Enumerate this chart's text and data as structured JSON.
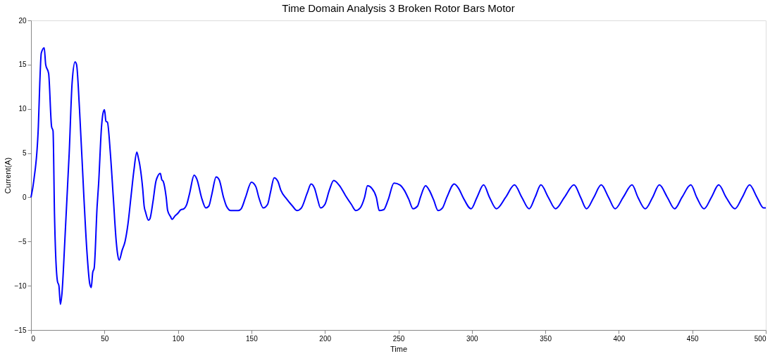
{
  "chart_data": {
    "type": "line",
    "title": "Time Domain Analysis 3 Broken Rotor Bars Motor",
    "xlabel": "Time",
    "ylabel": "Current(A)",
    "xlim": [
      0,
      500
    ],
    "xticks": [
      0,
      50,
      100,
      150,
      200,
      250,
      300,
      350,
      400,
      450,
      500
    ],
    "ylim": [
      -15,
      20
    ],
    "yticks": [
      -15,
      -10,
      -5,
      0,
      5,
      10,
      15,
      20
    ],
    "grid": false,
    "legend": false,
    "marker": "none",
    "line_style": "solid",
    "series": [
      {
        "color": "#0000ff",
        "x": [
          0,
          2,
          5,
          6,
          7,
          9,
          10,
          12,
          14,
          15,
          16,
          18,
          19,
          20,
          21,
          23,
          26,
          28,
          30,
          31,
          33,
          36,
          38,
          40,
          41,
          42,
          43,
          45,
          46,
          48,
          49,
          50,
          51,
          52,
          54,
          56,
          58,
          59,
          60,
          62,
          64,
          66,
          68,
          70,
          72,
          73,
          74,
          76,
          77,
          78,
          80,
          81,
          83,
          85,
          86,
          88,
          89,
          90,
          92,
          93,
          95,
          96,
          98,
          100,
          102,
          104,
          106,
          108,
          111,
          113,
          116,
          119,
          121,
          123,
          126,
          128,
          131,
          133,
          136,
          141,
          143,
          146,
          150,
          153,
          155,
          158,
          161,
          163,
          165.5,
          168,
          170,
          174,
          178,
          181,
          184,
          188,
          190.6,
          193,
          195,
          197,
          200,
          203,
          206,
          210,
          214,
          218,
          221,
          224,
          227,
          229,
          232,
          235,
          237,
          240,
          243,
          247,
          251,
          254,
          257,
          260,
          263,
          265,
          268.5,
          271,
          274,
          277,
          280,
          283,
          288,
          291,
          294,
          299.5,
          303.5,
          308,
          312,
          316.7,
          323,
          329,
          334,
          339,
          343,
          347,
          352,
          357,
          363,
          369.5,
          374,
          378,
          383,
          388,
          393,
          397.5,
          403,
          409,
          413,
          418,
          423,
          427.6,
          433,
          438,
          443,
          449,
          453,
          458,
          463,
          468,
          473,
          479,
          484,
          489,
          494,
          498.5,
          500
        ],
        "values": [
          0,
          2,
          8,
          13,
          16.3,
          16.9,
          15,
          14,
          8,
          7.5,
          -2,
          -9.5,
          -10,
          -12.1,
          -11,
          -5,
          5,
          13,
          15.3,
          15,
          10,
          0,
          -6,
          -9.8,
          -10.2,
          -8.5,
          -8,
          -1,
          1.5,
          8,
          9.5,
          9.9,
          8.6,
          8.5,
          5,
          0,
          -5,
          -6.5,
          -7.1,
          -6,
          -5,
          -3,
          0,
          3,
          5.1,
          4.5,
          3.7,
          1,
          -1,
          -1.7,
          -2.6,
          -2.4,
          -0.5,
          1.8,
          2.3,
          2.7,
          2,
          1.8,
          0,
          -1.5,
          -2.2,
          -2.5,
          -2.1,
          -1.8,
          -1.4,
          -1.3,
          -0.8,
          0.5,
          2.5,
          2,
          0,
          -1.2,
          -1,
          0.3,
          2.3,
          2,
          0,
          -1,
          -1.5,
          -1.5,
          -1.3,
          0,
          1.7,
          1.2,
          0,
          -1.2,
          -0.8,
          0.6,
          2.2,
          1.8,
          0.8,
          -0.2,
          -1,
          -1.5,
          -1.2,
          0.5,
          1.5,
          1,
          -0.2,
          -1.2,
          -0.8,
          0.8,
          1.9,
          1.3,
          0.2,
          -0.8,
          -1.5,
          -1.2,
          0,
          1.3,
          1,
          0,
          -1.5,
          -1.4,
          -0.3,
          1.6,
          1.4,
          0.8,
          -0.2,
          -1.3,
          -1,
          0,
          1.3,
          0.8,
          -0.3,
          -1.5,
          -1.2,
          0,
          1.5,
          1,
          0,
          -1.3,
          0,
          1.4,
          0,
          -1.3,
          0,
          1.4,
          0,
          -1.3,
          0,
          1.4,
          0,
          -1.3,
          0,
          1.4,
          0,
          -1.3,
          0,
          1.4,
          0,
          -1.3,
          0,
          1.4,
          0,
          -1.3,
          0,
          1.4,
          0,
          -1.3,
          0,
          1.4,
          0,
          -1.3,
          0,
          1.4,
          0,
          -1.3,
          0,
          1.4,
          0,
          -1.2,
          -1.2
        ]
      }
    ]
  }
}
